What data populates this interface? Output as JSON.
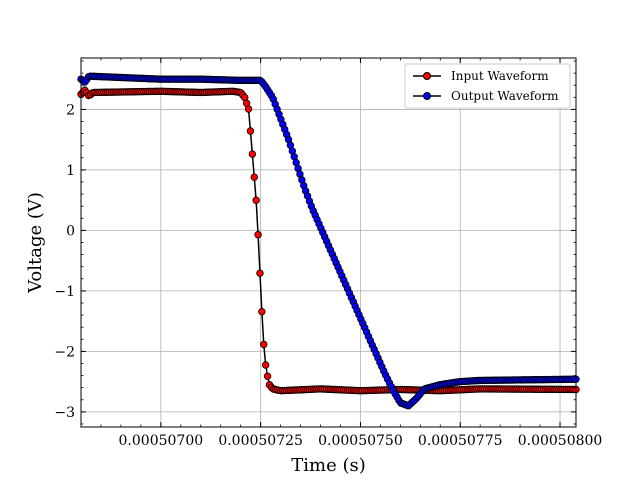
{
  "chart_data": {
    "type": "line",
    "xlabel": "Time (s)",
    "ylabel": "Voltage (V)",
    "xlim": [
      0.0005068,
      0.00050804
    ],
    "ylim": [
      -3.25,
      2.85
    ],
    "x_ticks": [
      0.000507,
      0.00050725,
      0.0005075,
      0.00050775,
      0.000508
    ],
    "x_tick_labels": [
      "0.00050700",
      "0.00050725",
      "0.00050750",
      "0.00050775",
      "0.00050800"
    ],
    "y_ticks": [
      -3,
      -2,
      -1,
      0,
      1,
      2
    ],
    "y_tick_labels": [
      "−3",
      "−2",
      "−1",
      "0",
      "1",
      "2"
    ],
    "grid": true,
    "legend_position": "top-right",
    "series": [
      {
        "name": "Input Waveform",
        "color": "#ff0000",
        "edge_color": "#000000",
        "points": [
          [
            0.0005068,
            2.25
          ],
          [
            0.00050681,
            2.32
          ],
          [
            0.00050682,
            2.22
          ],
          [
            0.00050683,
            2.28
          ],
          [
            0.000507,
            2.3
          ],
          [
            0.0005071,
            2.28
          ],
          [
            0.00050718,
            2.3
          ],
          [
            0.0005072,
            2.28
          ],
          [
            0.00050721,
            2.2
          ],
          [
            0.00050722,
            2.0
          ],
          [
            0.000507225,
            1.6
          ],
          [
            0.00050723,
            1.2
          ],
          [
            0.000507235,
            0.8
          ],
          [
            0.00050724,
            0.4
          ],
          [
            0.000507243,
            0.0
          ],
          [
            0.000507246,
            -0.4
          ],
          [
            0.000507249,
            -0.8
          ],
          [
            0.000507252,
            -1.2
          ],
          [
            0.000507255,
            -1.6
          ],
          [
            0.000507258,
            -1.9
          ],
          [
            0.000507262,
            -2.2
          ],
          [
            0.000507267,
            -2.4
          ],
          [
            0.000507272,
            -2.55
          ],
          [
            0.00050728,
            -2.62
          ],
          [
            0.0005073,
            -2.65
          ],
          [
            0.0005074,
            -2.62
          ],
          [
            0.0005075,
            -2.65
          ],
          [
            0.0005076,
            -2.63
          ],
          [
            0.0005077,
            -2.65
          ],
          [
            0.0005078,
            -2.62
          ],
          [
            0.00050804,
            -2.63
          ]
        ]
      },
      {
        "name": "Output Waveform",
        "color": "#0000ff",
        "edge_color": "#000000",
        "points": [
          [
            0.0005068,
            2.5
          ],
          [
            0.00050681,
            2.45
          ],
          [
            0.00050682,
            2.55
          ],
          [
            0.000507,
            2.5
          ],
          [
            0.0005071,
            2.5
          ],
          [
            0.0005072,
            2.48
          ],
          [
            0.00050725,
            2.48
          ],
          [
            0.00050726,
            2.4
          ],
          [
            0.00050728,
            2.2
          ],
          [
            0.0005073,
            1.85
          ],
          [
            0.00050732,
            1.5
          ],
          [
            0.00050734,
            1.1
          ],
          [
            0.00050736,
            0.7
          ],
          [
            0.00050738,
            0.35
          ],
          [
            0.0005074,
            0.05
          ],
          [
            0.00050742,
            -0.25
          ],
          [
            0.00050744,
            -0.55
          ],
          [
            0.00050746,
            -0.85
          ],
          [
            0.00050748,
            -1.15
          ],
          [
            0.0005075,
            -1.45
          ],
          [
            0.00050752,
            -1.75
          ],
          [
            0.00050754,
            -2.05
          ],
          [
            0.00050756,
            -2.35
          ],
          [
            0.00050758,
            -2.62
          ],
          [
            0.0005076,
            -2.85
          ],
          [
            0.00050762,
            -2.9
          ],
          [
            0.00050764,
            -2.78
          ],
          [
            0.00050766,
            -2.62
          ],
          [
            0.0005077,
            -2.55
          ],
          [
            0.00050775,
            -2.5
          ],
          [
            0.0005078,
            -2.48
          ],
          [
            0.00050804,
            -2.46
          ]
        ]
      }
    ]
  }
}
